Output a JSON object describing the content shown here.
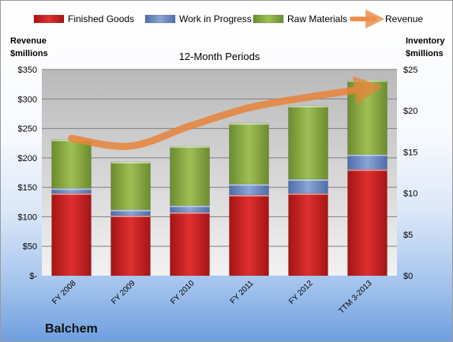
{
  "chart_data": {
    "type": "bar",
    "stacked": true,
    "title": "12-Month Periods",
    "company": "Balchem",
    "categories": [
      "FY 2008",
      "FY 2009",
      "FY 2010",
      "FY 2011",
      "FY 2012",
      "TTM 3-2013"
    ],
    "series": [
      {
        "name": "Finished Goods",
        "axis": "right",
        "color": "#cc2020",
        "values": [
          10.0,
          7.3,
          7.7,
          9.8,
          10.0,
          12.9
        ]
      },
      {
        "name": "Work in Progress",
        "axis": "right",
        "color": "#6f8fc6",
        "values": [
          0.6,
          0.7,
          0.8,
          1.3,
          1.7,
          1.8
        ]
      },
      {
        "name": "Raw Materials",
        "axis": "right",
        "color": "#8aac42",
        "values": [
          5.9,
          5.8,
          7.2,
          7.4,
          8.9,
          9.0
        ]
      },
      {
        "name": "Revenue",
        "axis": "left",
        "type": "line",
        "color": "#e8843a",
        "values": [
          233,
          220,
          254,
          285,
          303,
          318
        ]
      }
    ],
    "left_axis": {
      "title": "Revenue\n$millions",
      "ylim": [
        0,
        350
      ],
      "ticks": [
        0,
        50,
        100,
        150,
        200,
        250,
        300,
        350
      ],
      "tick_labels": [
        "$-",
        "$50",
        "$100",
        "$150",
        "$200",
        "$250",
        "$300",
        "$350"
      ]
    },
    "right_axis": {
      "title": "Inventory\n$millions",
      "ylim": [
        0,
        25
      ],
      "ticks": [
        0,
        5,
        10,
        15,
        20,
        25
      ],
      "tick_labels": [
        "$0",
        "$5",
        "$10",
        "$15",
        "$20",
        "$25"
      ]
    },
    "legend_position": "top",
    "grid": true
  }
}
